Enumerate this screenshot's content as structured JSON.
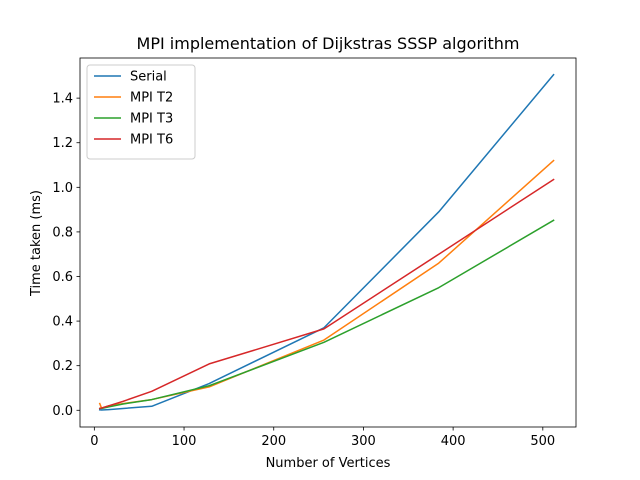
{
  "chart_data": {
    "type": "line",
    "title": "MPI implementation of Dijkstras SSSP algorithm",
    "xlabel": "Number of Vertices",
    "ylabel": "Time taken (ms)",
    "xlim": [
      -16,
      537
    ],
    "ylim": [
      -0.075,
      1.58
    ],
    "xticks": [
      0,
      100,
      200,
      300,
      400,
      500
    ],
    "yticks": [
      0.0,
      0.2,
      0.4,
      0.6,
      0.8,
      1.0,
      1.2,
      1.4
    ],
    "ytick_labels": [
      "0.0",
      "0.2",
      "0.4",
      "0.6",
      "0.8",
      "1.0",
      "1.2",
      "1.4"
    ],
    "grid": false,
    "legend_position": "upper-left",
    "series": [
      {
        "name": "Serial",
        "color": "#1f77b4",
        "x": [
          6,
          8,
          16,
          32,
          64,
          128,
          256,
          384,
          512
        ],
        "y": [
          0.002,
          0.001,
          0.003,
          0.008,
          0.018,
          0.12,
          0.37,
          0.89,
          1.505
        ]
      },
      {
        "name": "MPI T2",
        "color": "#ff7f0e",
        "x": [
          6,
          8,
          16,
          32,
          64,
          128,
          256,
          384,
          512
        ],
        "y": [
          0.03,
          0.01,
          0.02,
          0.03,
          0.048,
          0.105,
          0.315,
          0.66,
          1.12
        ]
      },
      {
        "name": "MPI T3",
        "color": "#2ca02c",
        "x": [
          6,
          8,
          16,
          32,
          64,
          128,
          256,
          384,
          512
        ],
        "y": [
          0.008,
          0.008,
          0.015,
          0.028,
          0.048,
          0.11,
          0.305,
          0.55,
          0.852
        ]
      },
      {
        "name": "MPI T6",
        "color": "#d62728",
        "x": [
          6,
          8,
          16,
          32,
          64,
          128,
          256,
          384,
          512
        ],
        "y": [
          0.008,
          0.01,
          0.02,
          0.04,
          0.085,
          0.208,
          0.365,
          0.7,
          1.035
        ]
      }
    ]
  }
}
